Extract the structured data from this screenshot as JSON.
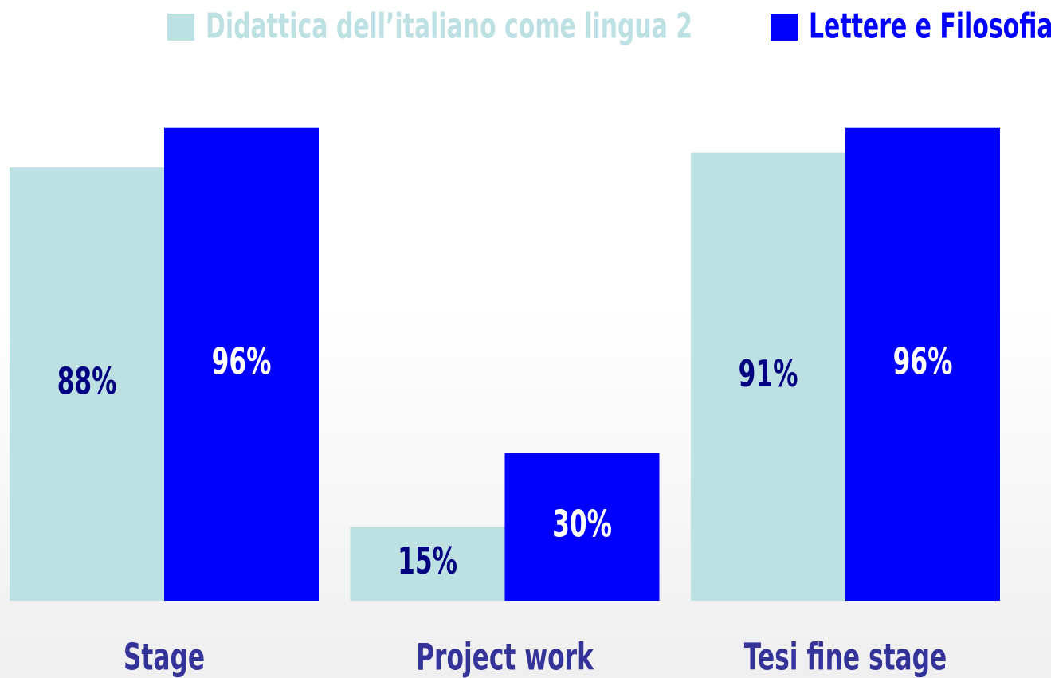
{
  "chart_data": {
    "type": "bar",
    "categories": [
      "Stage",
      "Project work",
      "Tesi fine stage"
    ],
    "series": [
      {
        "name": "Didattica dell’italiano come lingua 2",
        "color": "#bde0e3",
        "values": [
          88,
          15,
          91
        ],
        "value_labels": [
          "88%",
          "15%",
          "91%"
        ]
      },
      {
        "name": "Lettere e Filosofia",
        "color": "#0000ff",
        "values": [
          96,
          30,
          96
        ],
        "value_labels": [
          "96%",
          "30%",
          "96%"
        ]
      }
    ]
  }
}
